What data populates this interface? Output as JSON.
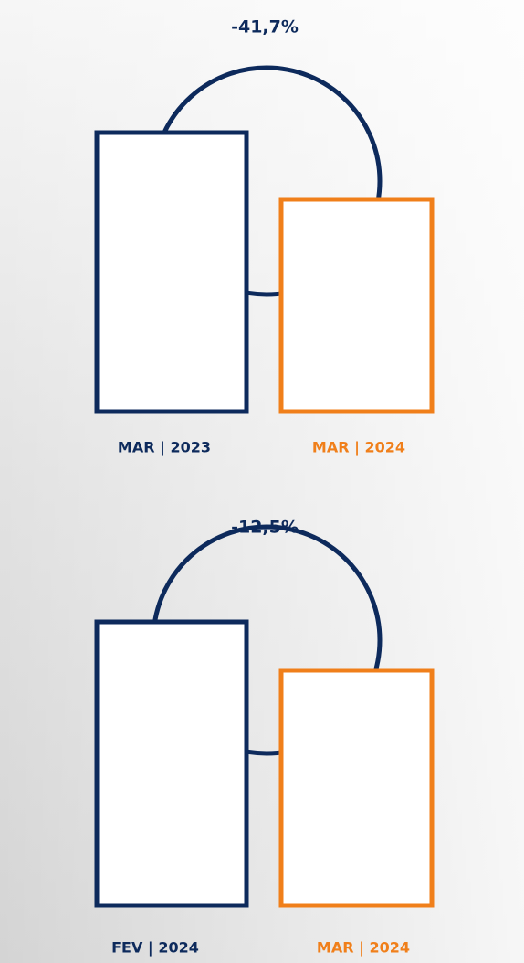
{
  "panels": [
    {
      "change": "-41,7%",
      "left_label": "MAR | 2023",
      "right_label": "MAR | 2024"
    },
    {
      "change": "-12,5%",
      "left_label": "FEV | 2024",
      "right_label": "MAR | 2024"
    }
  ]
}
